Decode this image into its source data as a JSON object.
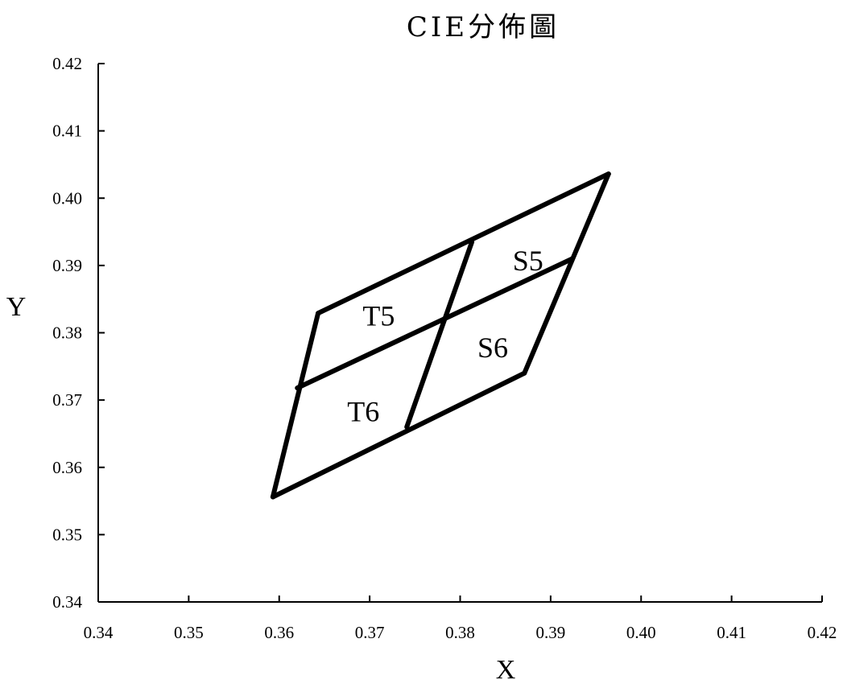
{
  "chart_data": {
    "type": "scatter",
    "title": "CIE分佈圖",
    "xlabel": "X",
    "ylabel": "Y",
    "xlim": [
      0.34,
      0.42
    ],
    "ylim": [
      0.34,
      0.42
    ],
    "x_ticks": [
      "0.34",
      "0.35",
      "0.36",
      "0.37",
      "0.38",
      "0.39",
      "0.40",
      "0.41",
      "0.42"
    ],
    "y_ticks": [
      "0.34",
      "0.35",
      "0.36",
      "0.37",
      "0.38",
      "0.39",
      "0.40",
      "0.41",
      "0.42"
    ],
    "grid": false,
    "boundaries": [
      {
        "name": "outer-left",
        "points": [
          [
            0.3593,
            0.3556
          ],
          [
            0.3643,
            0.3829
          ]
        ]
      },
      {
        "name": "outer-top",
        "points": [
          [
            0.3643,
            0.3829
          ],
          [
            0.3964,
            0.4036
          ]
        ]
      },
      {
        "name": "outer-right",
        "points": [
          [
            0.3964,
            0.4036
          ],
          [
            0.3871,
            0.374
          ]
        ]
      },
      {
        "name": "outer-bottom",
        "points": [
          [
            0.3871,
            0.374
          ],
          [
            0.3593,
            0.3556
          ]
        ]
      },
      {
        "name": "mid-horizontal",
        "points": [
          [
            0.362,
            0.3718
          ],
          [
            0.3924,
            0.391
          ]
        ]
      },
      {
        "name": "mid-vertical",
        "points": [
          [
            0.3813,
            0.3935
          ],
          [
            0.3741,
            0.366
          ]
        ]
      }
    ],
    "regions": [
      {
        "label": "T5",
        "x": 0.371,
        "y": 0.3825
      },
      {
        "label": "S5",
        "x": 0.3875,
        "y": 0.3907
      },
      {
        "label": "S6",
        "x": 0.3836,
        "y": 0.3778
      },
      {
        "label": "T6",
        "x": 0.3693,
        "y": 0.3683
      }
    ]
  }
}
